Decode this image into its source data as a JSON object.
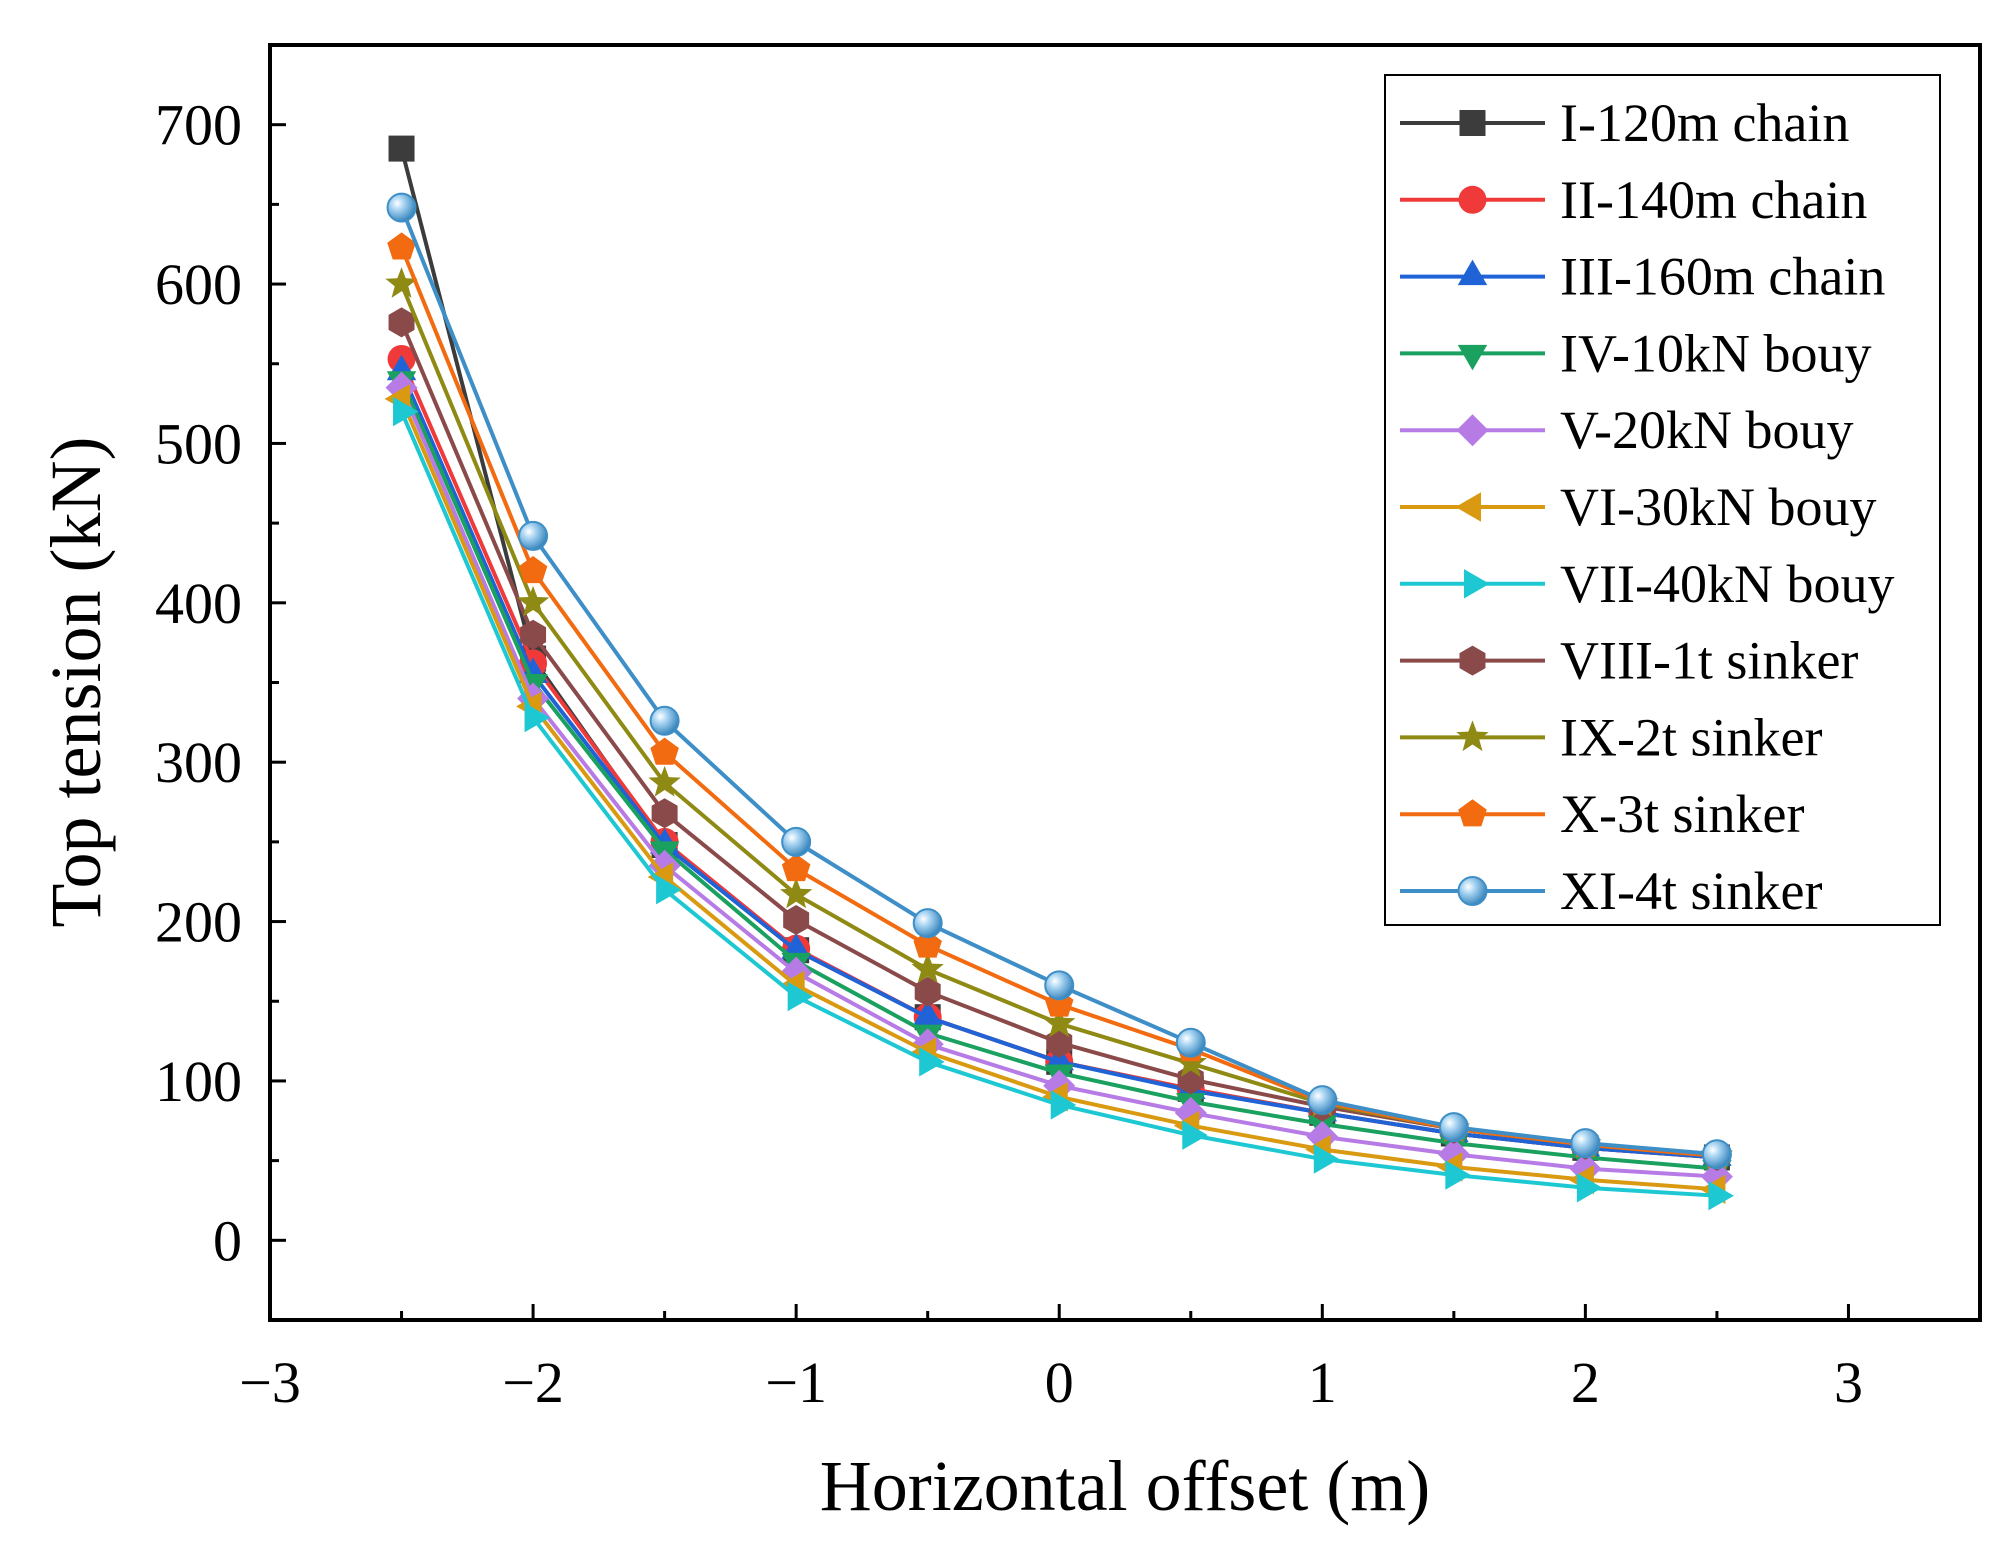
{
  "chart_data": {
    "type": "line",
    "title": "",
    "xlabel": "Horizontal offset (m)",
    "ylabel": "Top tension (kN)",
    "xlim": [
      -3,
      3.5
    ],
    "ylim": [
      -50,
      750
    ],
    "xticks": [
      -3,
      -2,
      -1,
      0,
      1,
      2,
      3
    ],
    "xtick_labels": [
      "−3",
      "−2",
      "−1",
      "0",
      "1",
      "2",
      "3"
    ],
    "yticks": [
      0,
      100,
      200,
      300,
      400,
      500,
      600,
      700
    ],
    "ytick_labels": [
      "0",
      "100",
      "200",
      "300",
      "400",
      "500",
      "600",
      "700"
    ],
    "legend_position": "top-right",
    "x": [
      -2.5,
      -2.0,
      -1.5,
      -1.0,
      -0.5,
      0.0,
      0.5,
      1.0,
      1.5,
      2.0,
      2.5
    ],
    "series": [
      {
        "name": "I-120m chain",
        "color": "#3c3c3c",
        "marker": "square",
        "values": [
          685,
          365,
          248,
          182,
          140,
          112,
          95,
          80,
          67,
          58,
          52
        ]
      },
      {
        "name": "II-140m chain",
        "color": "#f03a3a",
        "marker": "circle",
        "values": [
          553,
          362,
          250,
          183,
          140,
          112,
          95,
          80,
          67,
          58,
          52
        ]
      },
      {
        "name": "III-160m chain",
        "color": "#1f63d6",
        "marker": "triangle-up",
        "values": [
          545,
          355,
          248,
          182,
          140,
          112,
          94,
          80,
          67,
          58,
          52
        ]
      },
      {
        "name": "IV-10kN bouy",
        "color": "#1aa05f",
        "marker": "triangle-down",
        "values": [
          540,
          350,
          245,
          175,
          130,
          105,
          87,
          73,
          61,
          52,
          45
        ]
      },
      {
        "name": "V-20kN bouy",
        "color": "#b77be6",
        "marker": "diamond",
        "values": [
          535,
          340,
          235,
          168,
          123,
          97,
          80,
          65,
          54,
          45,
          40
        ]
      },
      {
        "name": "VI-30kN bouy",
        "color": "#d99a12",
        "marker": "triangle-left",
        "values": [
          528,
          335,
          228,
          160,
          118,
          90,
          72,
          57,
          46,
          38,
          32
        ]
      },
      {
        "name": "VII-40kN bouy",
        "color": "#1ec8d2",
        "marker": "triangle-right",
        "values": [
          520,
          328,
          220,
          153,
          112,
          85,
          66,
          51,
          41,
          33,
          28
        ]
      },
      {
        "name": "VIII-1t sinker",
        "color": "#8b4a4a",
        "marker": "hexagon",
        "values": [
          576,
          380,
          268,
          201,
          156,
          124,
          101,
          84,
          70,
          60,
          53
        ]
      },
      {
        "name": "IX-2t sinker",
        "color": "#8f8a14",
        "marker": "star",
        "values": [
          600,
          400,
          287,
          217,
          170,
          136,
          111,
          86,
          70,
          60,
          53
        ]
      },
      {
        "name": "X-3t sinker",
        "color": "#f26b10",
        "marker": "pentagon",
        "values": [
          623,
          420,
          306,
          233,
          185,
          148,
          120,
          87,
          70,
          60,
          53
        ]
      },
      {
        "name": "XI-4t sinker",
        "color": "#3e8fc7",
        "marker": "sphere",
        "values": [
          648,
          442,
          326,
          250,
          199,
          160,
          124,
          88,
          71,
          61,
          54
        ]
      }
    ]
  }
}
